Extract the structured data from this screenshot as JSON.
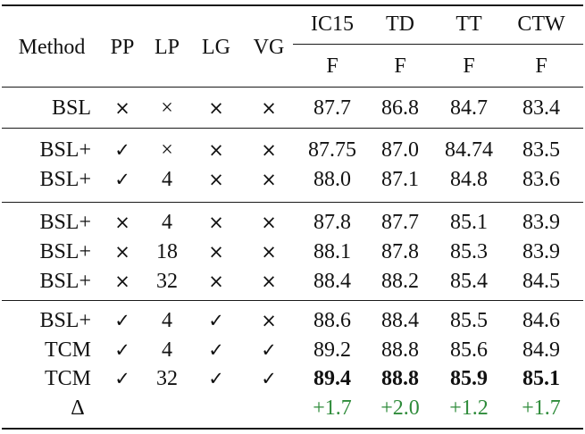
{
  "header": {
    "method": "Method",
    "flags": [
      "PP",
      "LP",
      "LG",
      "VG"
    ],
    "datasets": [
      "IC15",
      "TD",
      "TT",
      "CTW"
    ],
    "metric": "F"
  },
  "rows": [
    {
      "method": "BSL",
      "pp": "×",
      "lp": "×",
      "lg": "×",
      "vg": "×",
      "scores": [
        "87.7",
        "86.8",
        "84.7",
        "83.4"
      ],
      "bold": false,
      "group": 0
    },
    {
      "method": "BSL+",
      "pp": "✓",
      "lp": "×",
      "lg": "×",
      "vg": "×",
      "scores": [
        "87.75",
        "87.0",
        "84.74",
        "83.5"
      ],
      "bold": false,
      "group": 1
    },
    {
      "method": "BSL+",
      "pp": "✓",
      "lp": "4",
      "lg": "×",
      "vg": "×",
      "scores": [
        "88.0",
        "87.1",
        "84.8",
        "83.6"
      ],
      "bold": false,
      "group": 1
    },
    {
      "method": "BSL+",
      "pp": "×",
      "lp": "4",
      "lg": "×",
      "vg": "×",
      "scores": [
        "87.8",
        "87.7",
        "85.1",
        "83.9"
      ],
      "bold": false,
      "group": 2
    },
    {
      "method": "BSL+",
      "pp": "×",
      "lp": "18",
      "lg": "×",
      "vg": "×",
      "scores": [
        "88.1",
        "87.8",
        "85.3",
        "83.9"
      ],
      "bold": false,
      "group": 2
    },
    {
      "method": "BSL+",
      "pp": "×",
      "lp": "32",
      "lg": "×",
      "vg": "×",
      "scores": [
        "88.4",
        "88.2",
        "85.4",
        "84.5"
      ],
      "bold": false,
      "group": 2
    },
    {
      "method": "BSL+",
      "pp": "✓",
      "lp": "4",
      "lg": "✓",
      "vg": "×",
      "scores": [
        "88.6",
        "88.4",
        "85.5",
        "84.6"
      ],
      "bold": false,
      "group": 3
    },
    {
      "method": "TCM",
      "pp": "✓",
      "lp": "4",
      "lg": "✓",
      "vg": "✓",
      "scores": [
        "89.2",
        "88.8",
        "85.6",
        "84.9"
      ],
      "bold": false,
      "group": 3
    },
    {
      "method": "TCM",
      "pp": "✓",
      "lp": "32",
      "lg": "✓",
      "vg": "✓",
      "scores": [
        "89.4",
        "88.8",
        "85.9",
        "85.1"
      ],
      "bold": true,
      "group": 3
    }
  ],
  "delta": {
    "label": "Δ",
    "values": [
      "+1.7",
      "+2.0",
      "+1.2",
      "+1.7"
    ],
    "color": "#2e8b3a"
  }
}
